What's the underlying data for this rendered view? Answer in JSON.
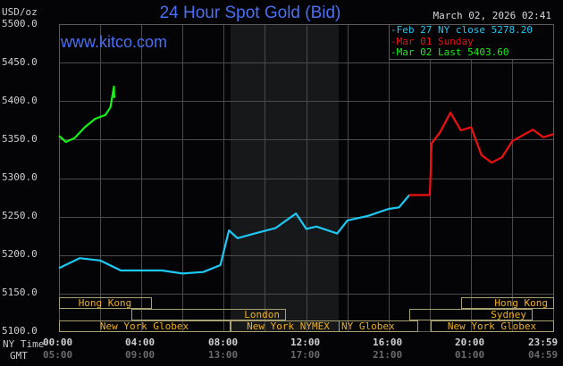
{
  "header": {
    "title": "24 Hour Spot Gold (Bid)",
    "watermark": "www.kitco.com",
    "timestamp": "March 02, 2026 02:41",
    "units": "USD/oz"
  },
  "legend": [
    {
      "label": "Feb 27 NY close 5278.20",
      "color": "#1ec8f4"
    },
    {
      "label": "Mar 01 Sunday",
      "color": "#f01010"
    },
    {
      "label": "Mar 02 Last 5403.60",
      "color": "#18f018"
    }
  ],
  "axes": {
    "y_ticks": [
      "5500.0",
      "5450.0",
      "5400.0",
      "5350.0",
      "5300.0",
      "5250.0",
      "5200.0",
      "5150.0",
      "5100.0"
    ],
    "x_row_label_ny": "NY Time",
    "x_row_label_gmt": "GMT",
    "x_ticks_ny": [
      "00:00",
      "04:00",
      "08:00",
      "12:00",
      "16:00",
      "20:00",
      "23:59"
    ],
    "x_ticks_gmt": [
      "05:00",
      "09:00",
      "13:00",
      "17:00",
      "21:00",
      "01:00",
      "04:59"
    ]
  },
  "sessions": [
    {
      "label": "Hong Kong",
      "row": 0
    },
    {
      "label": "London",
      "row": 1
    },
    {
      "label": "New York Globex",
      "row": 2
    },
    {
      "label": "New York NYMEX",
      "row": 2
    },
    {
      "label": "NY Globex",
      "row": 2
    },
    {
      "label": "Hong Kong",
      "row": 0
    },
    {
      "label": "Sydney",
      "row": 1
    },
    {
      "label": "New York Globex",
      "row": 2
    }
  ],
  "colors": {
    "background": "#040406",
    "grid": "#4a4a4a",
    "shade": "#16181a",
    "session_border": "#a8a070",
    "session_text": "#f0b020",
    "title_blue": "#4a6ff0",
    "prev_close": "#1ec8f4",
    "sunday": "#f01010",
    "today": "#18f018"
  },
  "chart_data": {
    "type": "line",
    "title": "24 Hour Spot Gold (Bid)",
    "xlabel": "NY Time / GMT",
    "ylabel": "USD/oz",
    "ylim": [
      5100,
      5500
    ],
    "xlim": [
      "00:00",
      "23:59"
    ],
    "grid": true,
    "legend_position": "top-right",
    "shaded_region": [
      "08:10",
      "13:30"
    ],
    "series": [
      {
        "name": "Feb 27 NY close 5278.20",
        "color": "#1ec8f4",
        "x": [
          "00:00",
          "01:00",
          "02:00",
          "03:00",
          "04:00",
          "05:00",
          "06:00",
          "07:00",
          "07:50",
          "08:15",
          "08:40",
          "09:30",
          "10:30",
          "11:30",
          "12:00",
          "12:30",
          "13:30",
          "14:00",
          "15:00",
          "16:00",
          "16:30",
          "17:00"
        ],
        "values": [
          5183,
          5196,
          5193,
          5180,
          5180,
          5180,
          5176,
          5178,
          5187,
          5232,
          5222,
          5228,
          5235,
          5254,
          5234,
          5237,
          5228,
          5245,
          5251,
          5260,
          5262,
          5278
        ]
      },
      {
        "name": "Mar 01 Sunday",
        "color": "#f01010",
        "x": [
          "17:00",
          "18:00",
          "18:05",
          "18:30",
          "19:00",
          "19:30",
          "20:00",
          "20:30",
          "21:00",
          "21:30",
          "22:00",
          "23:00",
          "23:30",
          "23:59"
        ],
        "values": [
          5278,
          5278,
          5345,
          5360,
          5385,
          5362,
          5366,
          5330,
          5320,
          5327,
          5348,
          5363,
          5353,
          5357
        ]
      },
      {
        "name": "Mar 02 Last 5403.60",
        "color": "#18f018",
        "x": [
          "00:00",
          "00:20",
          "00:45",
          "01:15",
          "01:45",
          "02:15",
          "02:30",
          "02:40",
          "02:41"
        ],
        "values": [
          5355,
          5347,
          5352,
          5366,
          5377,
          5382,
          5392,
          5419,
          5404
        ]
      }
    ]
  }
}
